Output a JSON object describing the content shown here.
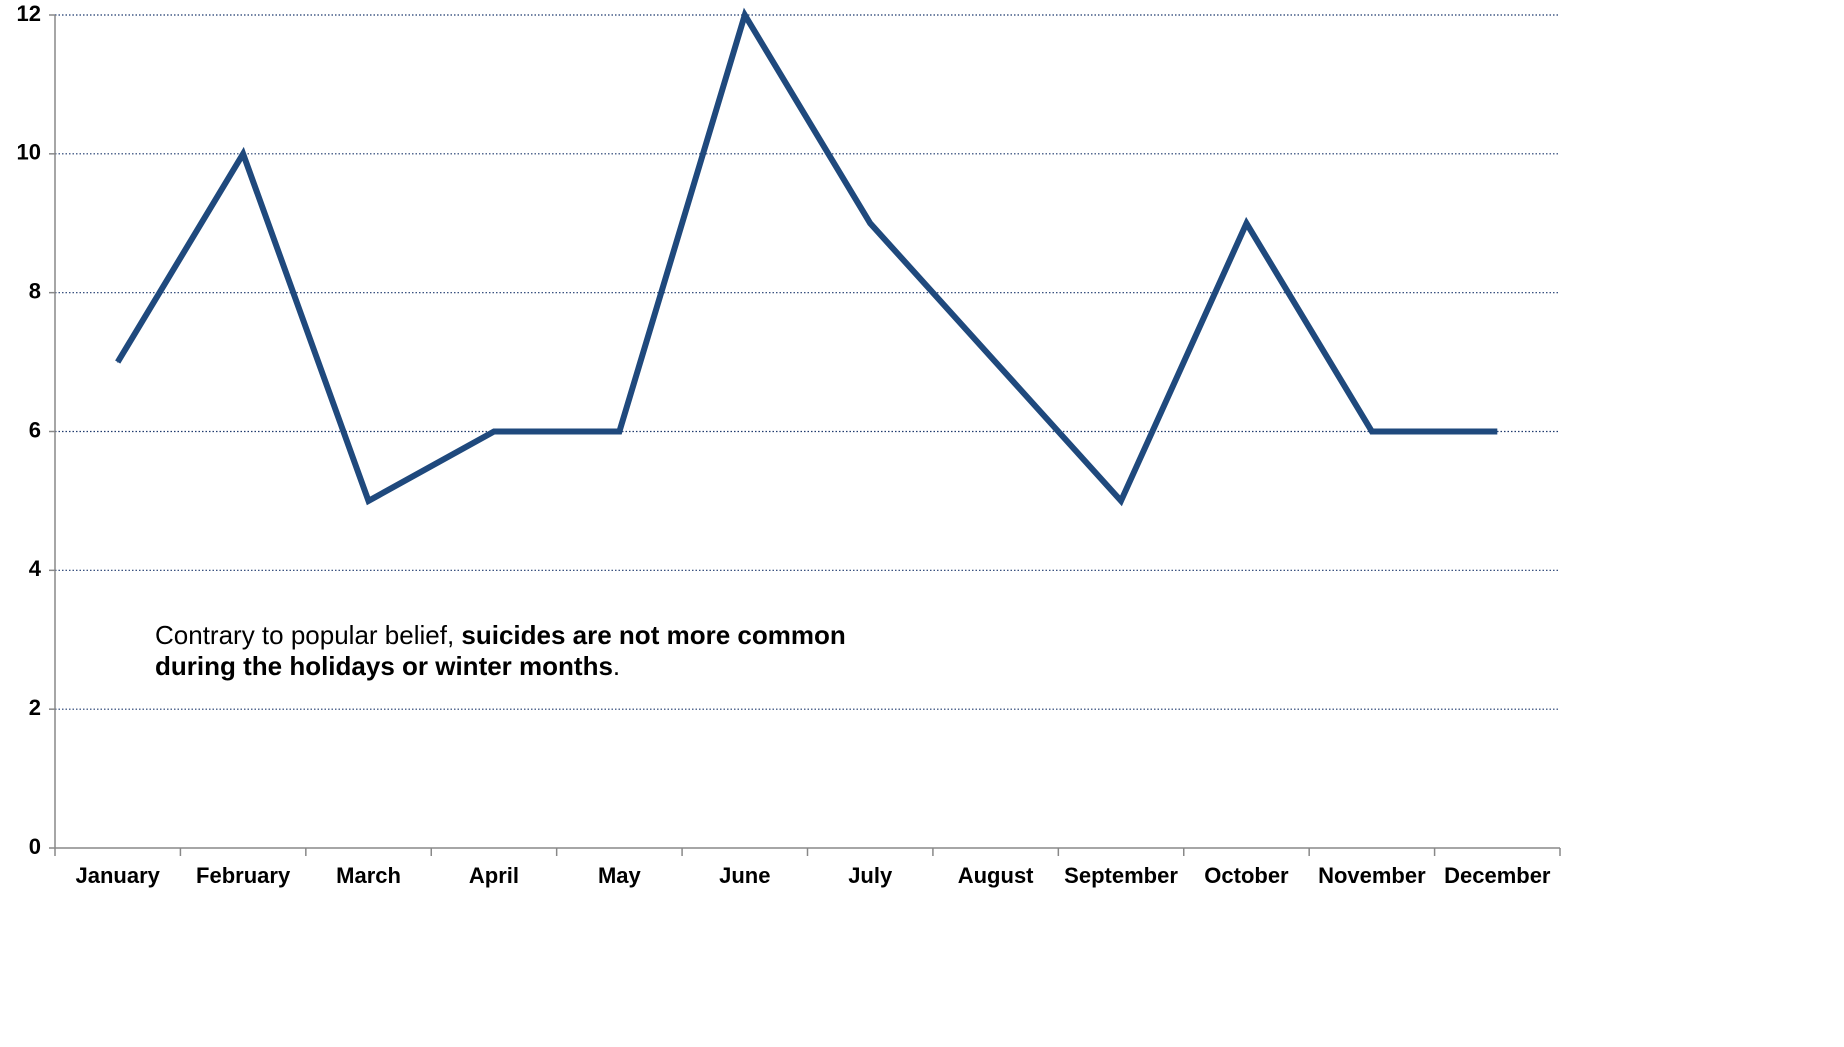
{
  "chart_data": {
    "type": "line",
    "title": "",
    "xlabel": "",
    "ylabel": "",
    "categories": [
      "January",
      "February",
      "March",
      "April",
      "May",
      "June",
      "July",
      "August",
      "September",
      "October",
      "November",
      "December"
    ],
    "series": [
      {
        "values": [
          7,
          10,
          5,
          6,
          6,
          12,
          9,
          7,
          5,
          9,
          6,
          6
        ]
      }
    ],
    "ylim": [
      0,
      12
    ],
    "yticks": [
      0,
      2,
      4,
      6,
      8,
      10,
      12
    ],
    "grid": true,
    "legend": "none",
    "colors": {
      "line": "#1f497d",
      "grid": "#1f3a6e",
      "axis": "#888888"
    }
  },
  "annotation": {
    "prefix": "Contrary to popular belief, ",
    "bold_line1": "suicides are not more common",
    "bold_line2": "during the holidays or winter months",
    "suffix": "."
  }
}
